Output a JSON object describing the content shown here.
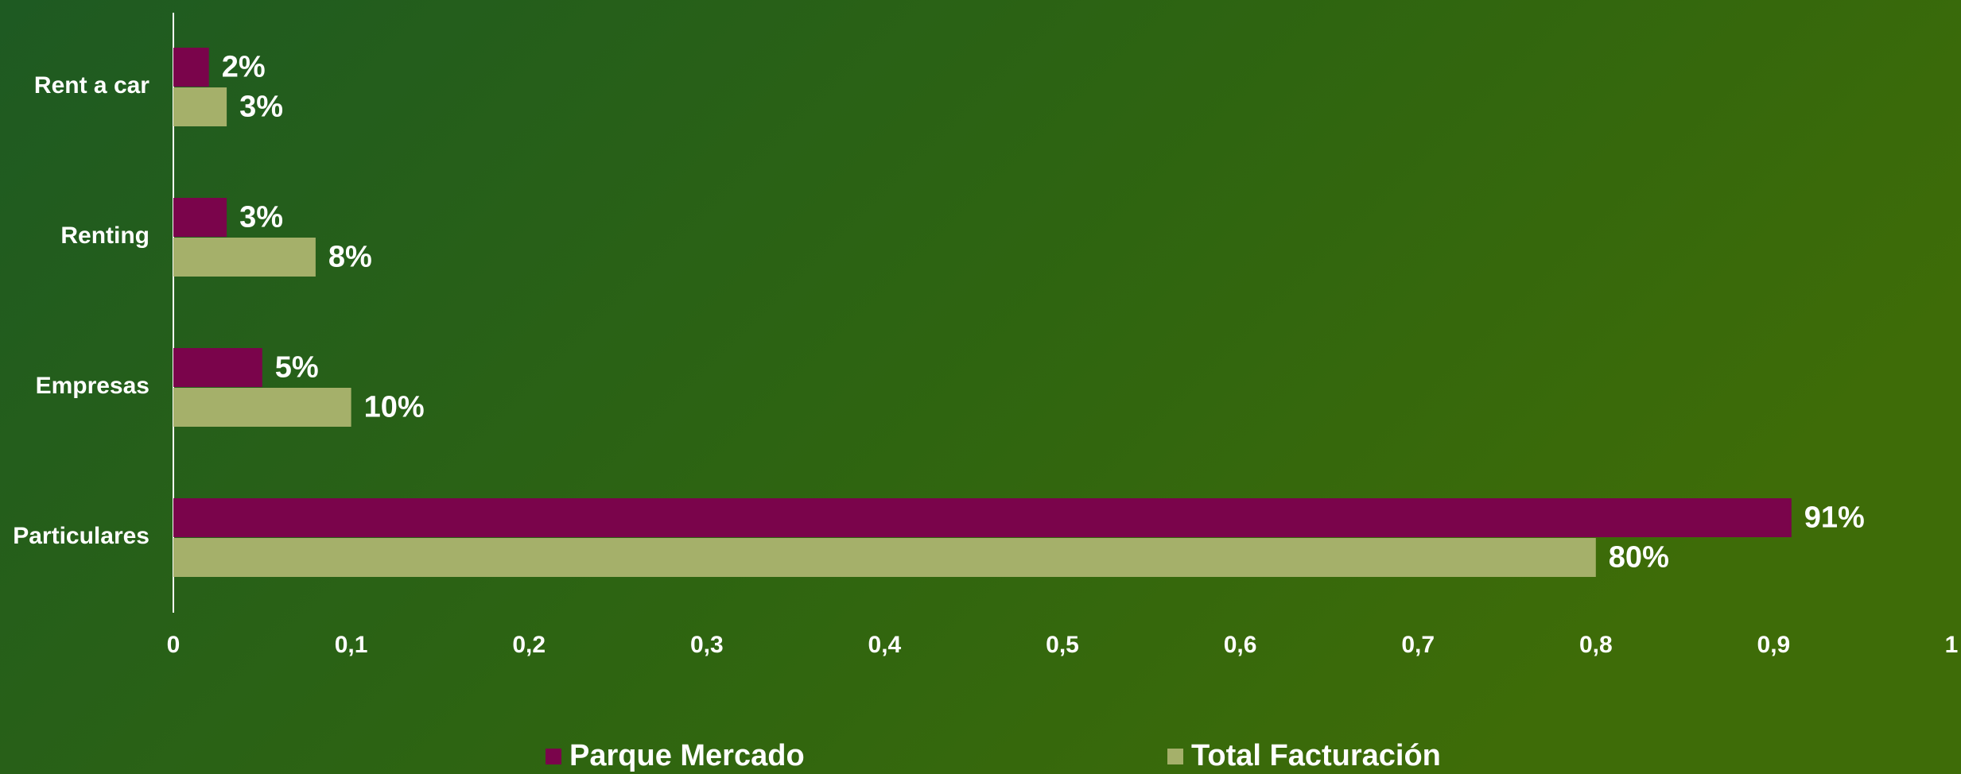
{
  "chart_data": {
    "type": "hbar",
    "categories": [
      "Rent a car",
      "Renting",
      "Empresas",
      "Particulares"
    ],
    "series": [
      {
        "name": "Parque Mercado",
        "color": "#7a044b",
        "values": [
          0.02,
          0.03,
          0.05,
          0.91
        ],
        "value_labels": [
          "2%",
          "3%",
          "5%",
          "91%"
        ]
      },
      {
        "name": "Total Facturación",
        "color": "#a5b06a",
        "values": [
          0.03,
          0.08,
          0.1,
          0.8
        ],
        "value_labels": [
          "3%",
          "8%",
          "10%",
          "80%"
        ]
      }
    ],
    "xlim": [
      0,
      1
    ],
    "xticks": [
      0,
      {
        "value": 0.1,
        "label": "0,1"
      },
      {
        "value": 0.2,
        "label": "0,2"
      },
      {
        "value": 0.3,
        "label": "0,3"
      },
      {
        "value": 0.4,
        "label": "0,4"
      },
      {
        "value": 0.5,
        "label": "0,5"
      },
      {
        "value": 0.6,
        "label": "0,6"
      },
      {
        "value": 0.7,
        "label": "0,7"
      },
      {
        "value": 0.8,
        "label": "0,8"
      },
      {
        "value": 0.9,
        "label": "0,9"
      },
      1
    ],
    "legend": "bottom"
  }
}
